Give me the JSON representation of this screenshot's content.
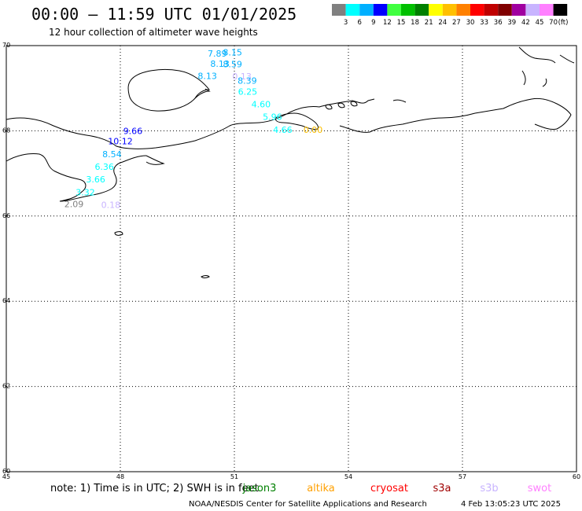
{
  "header": {
    "title": "00:00 – 11:59 UTC 01/01/2025",
    "subtitle": "12 hour collection of altimeter wave heights"
  },
  "scale": {
    "labels": [
      "3",
      "6",
      "9",
      "12",
      "15",
      "18",
      "21",
      "24",
      "27",
      "30",
      "33",
      "36",
      "39",
      "42",
      "45",
      "70"
    ],
    "unit": "(ft)",
    "colors": [
      "#808080",
      "#00ffff",
      "#00b0ff",
      "#0000ff",
      "#40ff40",
      "#00c000",
      "#008000",
      "#ffff00",
      "#ffc000",
      "#ff8000",
      "#ff0000",
      "#c00000",
      "#800000",
      "#a000a0",
      "#c8b4ff",
      "#ff80ff",
      "#000000"
    ]
  },
  "map": {
    "lon_range": [
      45,
      60
    ],
    "lat_range": [
      60,
      70
    ],
    "x_ticks": [
      "45",
      "48",
      "51",
      "54",
      "57",
      "60"
    ],
    "y_ticks": [
      "70",
      "68",
      "66",
      "64",
      "62",
      "60"
    ]
  },
  "observations": [
    {
      "lon": 50.55,
      "lat": 69.82,
      "value": "7.89",
      "color": "#00b0ff"
    },
    {
      "lon": 50.95,
      "lat": 69.84,
      "value": "8.15",
      "color": "#00b0ff"
    },
    {
      "lon": 50.62,
      "lat": 69.58,
      "value": "8.13",
      "color": "#00b0ff"
    },
    {
      "lon": 50.95,
      "lat": 69.57,
      "value": "8.59",
      "color": "#00b0ff"
    },
    {
      "lon": 50.29,
      "lat": 69.29,
      "value": "8.13",
      "color": "#00b0ff"
    },
    {
      "lon": 51.2,
      "lat": 69.28,
      "value": "0.13",
      "color": "#c8b4ff"
    },
    {
      "lon": 51.34,
      "lat": 69.18,
      "value": "8.39",
      "color": "#00b0ff"
    },
    {
      "lon": 51.35,
      "lat": 68.92,
      "value": "6.25",
      "color": "#00ffff"
    },
    {
      "lon": 51.7,
      "lat": 68.63,
      "value": "4.60",
      "color": "#00ffff"
    },
    {
      "lon": 52.0,
      "lat": 68.33,
      "value": "5.96",
      "color": "#00ffff"
    },
    {
      "lon": 52.27,
      "lat": 68.03,
      "value": "4.66",
      "color": "#00ffff"
    },
    {
      "lon": 53.07,
      "lat": 68.03,
      "value": "0.00",
      "color": "#ffc000"
    },
    {
      "lon": 48.33,
      "lat": 68.0,
      "value": "9.66",
      "color": "#0000ff"
    },
    {
      "lon": 48.0,
      "lat": 67.76,
      "value": "10.12",
      "color": "#0000ff"
    },
    {
      "lon": 47.78,
      "lat": 67.45,
      "value": "8.54",
      "color": "#00b0ff"
    },
    {
      "lon": 47.58,
      "lat": 67.16,
      "value": "6.36",
      "color": "#00ffff"
    },
    {
      "lon": 47.35,
      "lat": 66.86,
      "value": "3.66",
      "color": "#00ffff"
    },
    {
      "lon": 47.08,
      "lat": 66.56,
      "value": "3.32",
      "color": "#00ffff"
    },
    {
      "lon": 46.78,
      "lat": 66.28,
      "value": "2.09",
      "color": "#808080"
    },
    {
      "lon": 47.75,
      "lat": 66.26,
      "value": "0.18",
      "color": "#c8b4ff"
    }
  ],
  "footer": {
    "note": "note: 1) Time is in UTC; 2) SWH is in feet",
    "satellites": [
      {
        "name": "jason3",
        "color": "#008000"
      },
      {
        "name": "altika",
        "color": "#ffa000"
      },
      {
        "name": "cryosat",
        "color": "#ff0000"
      },
      {
        "name": "s3a",
        "color": "#a00000"
      },
      {
        "name": "s3b",
        "color": "#c8b4ff"
      },
      {
        "name": "swot",
        "color": "#ff80ff"
      }
    ],
    "credit": "NOAA/NESDIS Center for Satellite Applications and Research",
    "timestamp": "4 Feb 13:05:23 UTC 2025"
  }
}
